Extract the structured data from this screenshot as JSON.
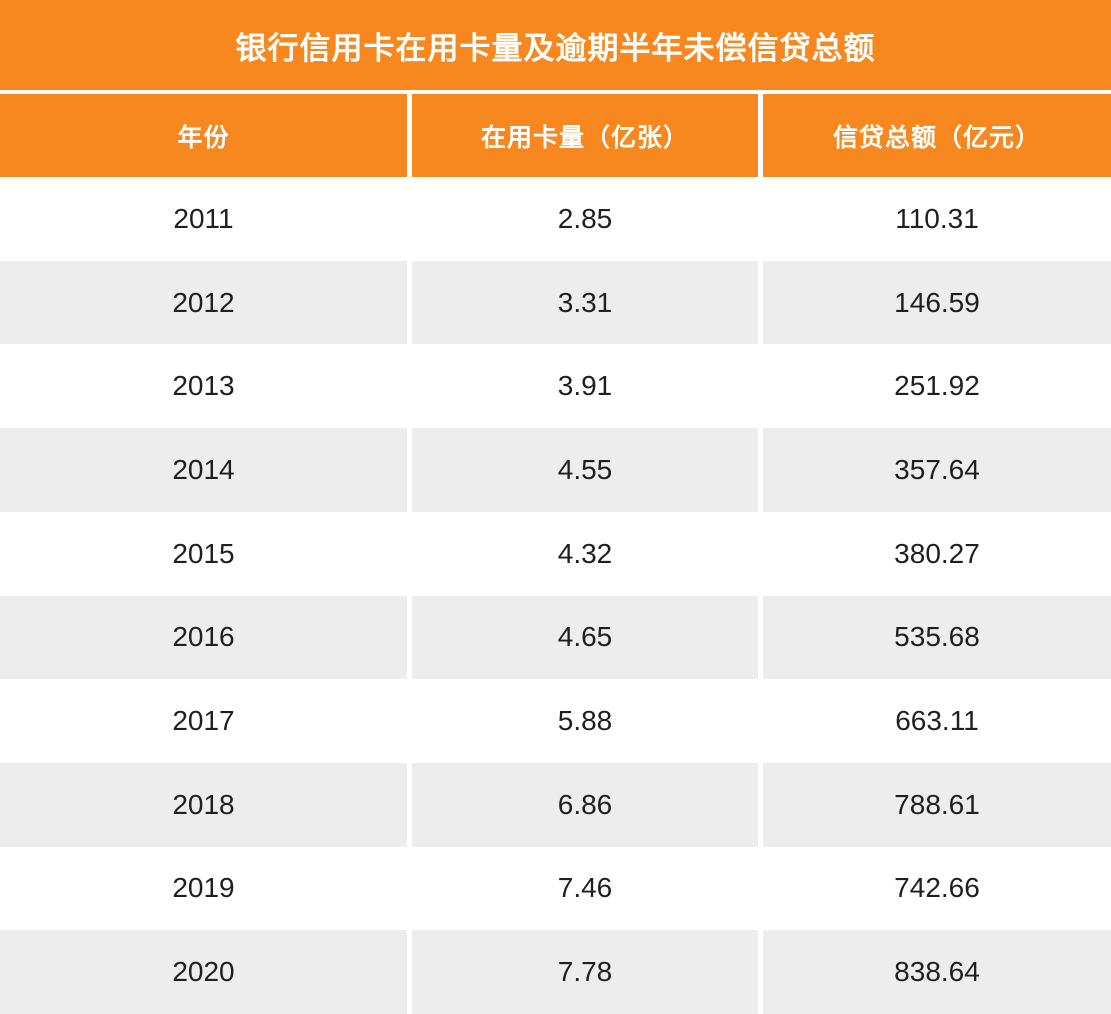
{
  "colors": {
    "accent_orange": "#F6881F",
    "row_alt_gray": "#EDEDED",
    "header_text": "#FFFFFF",
    "body_text": "#1F1F1F"
  },
  "chart_data": {
    "type": "table",
    "title": "银行信用卡在用卡量及逾期半年未偿信贷总额",
    "columns": [
      "年份",
      "在用卡量（亿张）",
      "信贷总额（亿元）"
    ],
    "rows": [
      [
        "2011",
        "2.85",
        "110.31"
      ],
      [
        "2012",
        "3.31",
        "146.59"
      ],
      [
        "2013",
        "3.91",
        "251.92"
      ],
      [
        "2014",
        "4.55",
        "357.64"
      ],
      [
        "2015",
        "4.32",
        "380.27"
      ],
      [
        "2016",
        "4.65",
        "535.68"
      ],
      [
        "2017",
        "5.88",
        "663.11"
      ],
      [
        "2018",
        "6.86",
        "788.61"
      ],
      [
        "2019",
        "7.46",
        "742.66"
      ],
      [
        "2020",
        "7.78",
        "838.64"
      ]
    ],
    "series_semantics": {
      "x": "year",
      "series": [
        {
          "name": "在用卡量（亿张）",
          "values": [
            2.85,
            3.31,
            3.91,
            4.55,
            4.32,
            4.65,
            5.88,
            6.86,
            7.46,
            7.78
          ]
        },
        {
          "name": "信贷总额（亿元）",
          "values": [
            110.31,
            146.59,
            251.92,
            357.64,
            380.27,
            535.68,
            663.11,
            788.61,
            742.66,
            838.64
          ]
        }
      ]
    }
  }
}
